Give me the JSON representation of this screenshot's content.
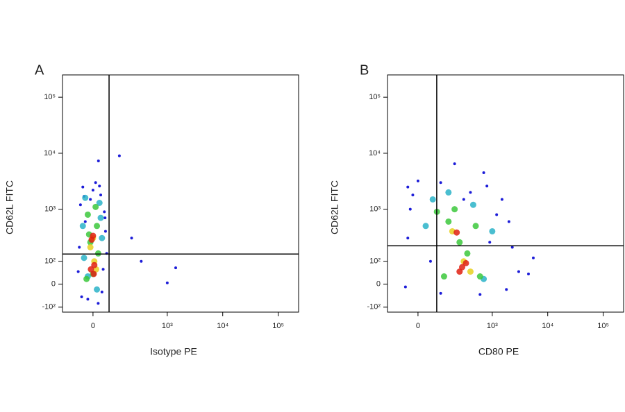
{
  "chart_data": [
    {
      "type": "scatter",
      "title": "A",
      "x_label": "Isotype PE",
      "y_label": "CD62L FITC",
      "xscale": "arcsinh",
      "yscale": "arcsinh",
      "xlim": [
        -150,
        233000
      ],
      "ylim": [
        -130,
        250000
      ],
      "xticks": [
        0,
        {
          "value": 1000,
          "label": "10³"
        },
        {
          "value": 10000,
          "label": "10⁴"
        },
        {
          "value": 100000,
          "label": "10⁵"
        }
      ],
      "yticks": [
        {
          "value": -100,
          "label": "-10²"
        },
        0,
        {
          "value": 100,
          "label": "10²"
        },
        {
          "value": 1000,
          "label": "10³"
        },
        {
          "value": 10000,
          "label": "10⁴"
        },
        {
          "value": 100000,
          "label": "10⁵"
        }
      ],
      "quadrant": [
        66,
        146
      ],
      "series": [
        {
          "color": "#1c1cd8",
          "x": [
            -40,
            10,
            30,
            -50,
            45,
            -30,
            50,
            -55,
            40,
            -45,
            20,
            -10,
            0,
            35,
            -60,
            55,
            122,
            219,
            334,
            1420,
            1000,
            21,
            -20,
            25,
            48,
            -35
          ],
          "y": [
            2500,
            3000,
            1800,
            1200,
            900,
            600,
            400,
            200,
            60,
            -50,
            -80,
            1500,
            2200,
            -30,
            50,
            150,
            9000,
            300,
            100,
            67,
            5,
            7300,
            -60,
            2600,
            700,
            1700
          ]
        },
        {
          "color": "#2ab3c8",
          "x": [
            -30,
            25,
            -40,
            35,
            -20,
            15,
            -35,
            30
          ],
          "y": [
            1600,
            1300,
            500,
            300,
            30,
            -20,
            120,
            700
          ]
        },
        {
          "color": "#3cc83c",
          "x": [
            -20,
            15,
            -10,
            20,
            0,
            -25,
            10,
            -15
          ],
          "y": [
            800,
            500,
            250,
            150,
            40,
            20,
            1100,
            350
          ]
        },
        {
          "color": "#e8d020",
          "x": [
            0,
            -10,
            5,
            12
          ],
          "y": [
            300,
            200,
            100,
            60
          ]
        },
        {
          "color": "#e02010",
          "x": [
            -5,
            5,
            -8,
            3,
            0
          ],
          "y": [
            280,
            80,
            60,
            40,
            330
          ]
        }
      ]
    },
    {
      "type": "scatter",
      "title": "B",
      "x_label": "CD80 PE",
      "y_label": "CD62L FITC",
      "xscale": "arcsinh",
      "yscale": "arcsinh",
      "xlim": [
        -150,
        233000
      ],
      "ylim": [
        -130,
        250000
      ],
      "xticks": [
        0,
        {
          "value": 1000,
          "label": "10³"
        },
        {
          "value": 10000,
          "label": "10⁴"
        },
        {
          "value": 100000,
          "label": "10⁵"
        }
      ],
      "yticks": [
        {
          "value": -100,
          "label": "-10²"
        },
        0,
        {
          "value": 100,
          "label": "10²"
        },
        {
          "value": 1000,
          "label": "10³"
        },
        {
          "value": 10000,
          "label": "10⁴"
        },
        {
          "value": 100000,
          "label": "10⁵"
        }
      ],
      "quadrant": [
        79,
        214
      ],
      "series": [
        {
          "color": "#1c1cd8",
          "x": [
            -40,
            0,
            100,
            400,
            1500,
            2000,
            2300,
            1800,
            600,
            100,
            -50,
            -40,
            -30,
            200,
            700,
            4500,
            3000,
            5500,
            1200,
            50,
            300,
            900,
            -20,
            800
          ],
          "y": [
            2500,
            3200,
            3000,
            2000,
            1500,
            600,
            200,
            -20,
            -40,
            -35,
            -10,
            300,
            1000,
            6500,
            4500,
            40,
            50,
            120,
            800,
            100,
            1500,
            250,
            1800,
            2600
          ]
        },
        {
          "color": "#2ab3c8",
          "x": [
            60,
            450,
            1000,
            30,
            700,
            150
          ],
          "y": [
            1500,
            1200,
            400,
            500,
            20,
            2000
          ]
        },
        {
          "color": "#3cc83c",
          "x": [
            150,
            250,
            350,
            500,
            120,
            600,
            80,
            200
          ],
          "y": [
            600,
            250,
            150,
            500,
            30,
            30,
            900,
            1000
          ]
        },
        {
          "color": "#e8d020",
          "x": [
            180,
            300,
            400
          ],
          "y": [
            400,
            100,
            50
          ]
        },
        {
          "color": "#e02010",
          "x": [
            220,
            280,
            330,
            250
          ],
          "y": [
            380,
            70,
            90,
            50
          ]
        }
      ]
    }
  ]
}
